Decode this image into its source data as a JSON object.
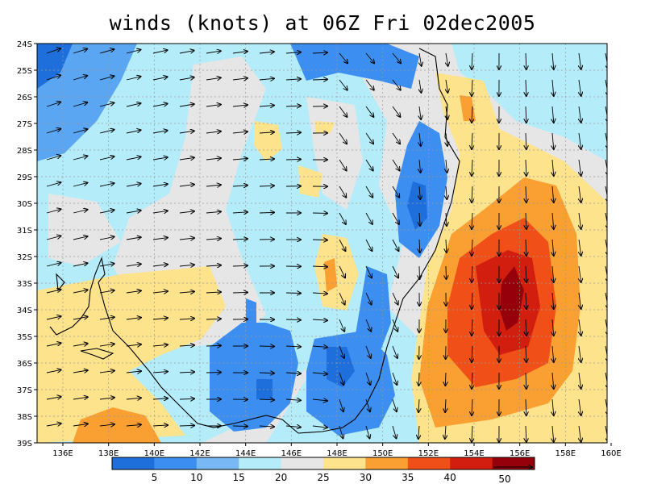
{
  "title": "winds (knots) at 06Z Fri 02dec2005",
  "lat_labels": [
    "24S",
    "25S",
    "26S",
    "27S",
    "28S",
    "29S",
    "30S",
    "31S",
    "32S",
    "33S",
    "34S",
    "35S",
    "36S",
    "37S",
    "38S",
    "39S"
  ],
  "lon_labels": [
    "136E",
    "138E",
    "140E",
    "142E",
    "144E",
    "146E",
    "148E",
    "150E",
    "152E",
    "154E",
    "156E",
    "158E",
    "160E"
  ],
  "colorbar": {
    "labels": [
      "5",
      "10",
      "15",
      "20",
      "25",
      "30",
      "35",
      "40"
    ],
    "colors": [
      "#1e6fdc",
      "#3c8ff0",
      "#78b8f5",
      "#b4ecfa",
      "#e6e6e6",
      "#fde38c",
      "#fa9f32",
      "#f05018",
      "#d21e0f",
      "#96000a"
    ]
  },
  "reference_vector": {
    "value": "50"
  }
}
